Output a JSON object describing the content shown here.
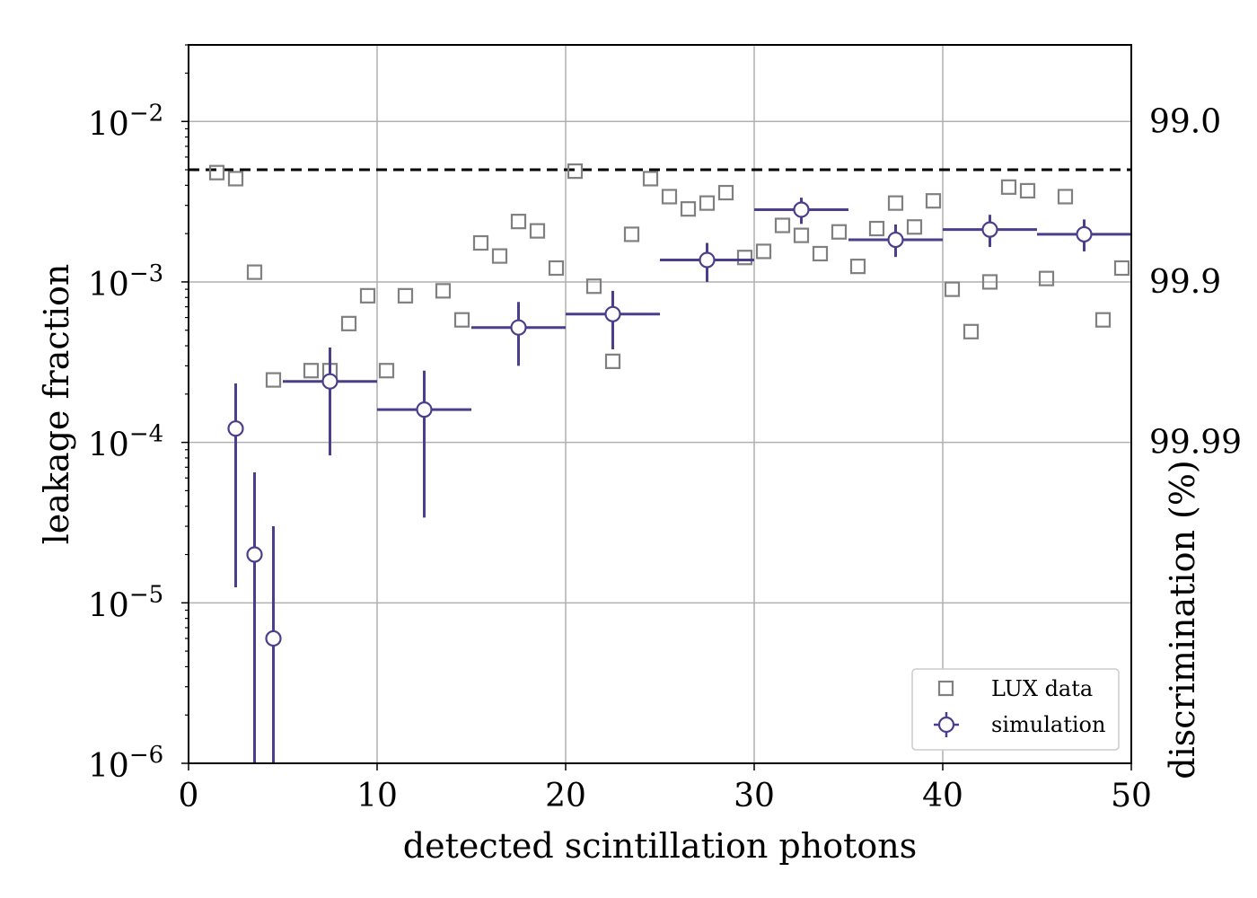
{
  "chart_data": {
    "type": "scatter",
    "xlabel": "detected scintillation photons",
    "ylabel": "leakage fraction",
    "y2label": "discrimination (%)",
    "xlim": [
      0,
      50
    ],
    "ylim": [
      1e-06,
      0.03
    ],
    "yscale": "log",
    "grid": true,
    "xticks": [
      {
        "v": 0,
        "label": "0"
      },
      {
        "v": 10,
        "label": "10"
      },
      {
        "v": 20,
        "label": "20"
      },
      {
        "v": 30,
        "label": "30"
      },
      {
        "v": 40,
        "label": "40"
      },
      {
        "v": 50,
        "label": "50"
      }
    ],
    "yticks": [
      {
        "v": 1e-06,
        "base": "10",
        "exp": "−6"
      },
      {
        "v": 1e-05,
        "base": "10",
        "exp": "−5"
      },
      {
        "v": 0.0001,
        "base": "10",
        "exp": "−4"
      },
      {
        "v": 0.001,
        "base": "10",
        "exp": "−3"
      },
      {
        "v": 0.01,
        "base": "10",
        "exp": "−2"
      }
    ],
    "y2ticks": [
      {
        "v": 0.01,
        "label": "99.0"
      },
      {
        "v": 0.001,
        "label": "99.9"
      },
      {
        "v": 0.0001,
        "label": "99.99"
      }
    ],
    "reference_line": {
      "y": 0.005,
      "style": "dashed",
      "color": "#000000"
    },
    "legend_position": "lower-right",
    "series": [
      {
        "name": "LUX data",
        "marker": "square",
        "color": "#808080",
        "x": [
          1.5,
          2.5,
          3.5,
          4.5,
          6.5,
          7.5,
          8.5,
          9.5,
          10.5,
          11.5,
          13.5,
          14.5,
          15.5,
          16.5,
          17.5,
          18.5,
          19.5,
          20.5,
          21.5,
          22.5,
          23.5,
          24.5,
          25.5,
          26.5,
          27.5,
          28.5,
          29.5,
          30.5,
          31.5,
          32.5,
          33.5,
          34.5,
          35.5,
          36.5,
          37.5,
          38.5,
          39.5,
          40.5,
          41.5,
          42.5,
          43.5,
          44.5,
          45.5,
          46.5,
          48.5,
          49.5
        ],
        "y": [
          0.0048,
          0.0044,
          0.00115,
          0.000245,
          0.00028,
          0.00028,
          0.00055,
          0.00082,
          0.00028,
          0.00082,
          0.00088,
          0.00058,
          0.00175,
          0.00145,
          0.00238,
          0.00208,
          0.00122,
          0.0049,
          0.00094,
          0.00032,
          0.00198,
          0.0044,
          0.0034,
          0.00285,
          0.0031,
          0.0036,
          0.00142,
          0.00155,
          0.00225,
          0.00195,
          0.0015,
          0.00205,
          0.00125,
          0.00215,
          0.0031,
          0.0022,
          0.0032,
          0.0009,
          0.00049,
          0.001,
          0.0039,
          0.0037,
          0.00105,
          0.0034,
          0.00058,
          0.00122
        ]
      },
      {
        "name": "simulation",
        "marker": "circle",
        "color": "#4b3f8c",
        "x": [
          2.5,
          3.5,
          4.5,
          7.5,
          12.5,
          17.5,
          22.5,
          27.5,
          32.5,
          37.5,
          42.5,
          47.5
        ],
        "xerr": [
          0,
          0,
          0,
          2.5,
          2.5,
          2.5,
          2.5,
          2.5,
          2.5,
          2.5,
          2.5,
          2.5
        ],
        "y": [
          0.000122,
          2e-05,
          6e-06,
          0.00024,
          0.00016,
          0.00052,
          0.00063,
          0.00137,
          0.00282,
          0.00183,
          0.00212,
          0.00198
        ],
        "ylo": [
          1.25e-05,
          1e-06,
          1e-06,
          8.3e-05,
          3.4e-05,
          0.0003,
          0.00038,
          0.001,
          0.0023,
          0.00143,
          0.00165,
          0.00155
        ],
        "yhi": [
          0.000233,
          6.5e-05,
          3e-05,
          0.00039,
          0.00028,
          0.00075,
          0.00088,
          0.00175,
          0.00335,
          0.00228,
          0.00262,
          0.00245
        ]
      }
    ]
  }
}
